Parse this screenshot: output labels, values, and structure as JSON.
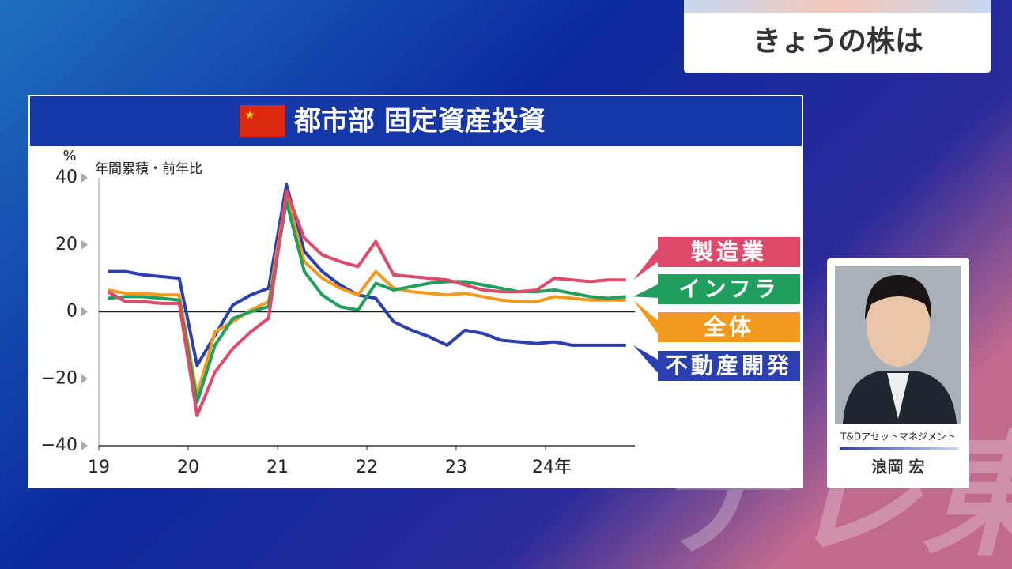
{
  "header": {
    "title": "きょうの株は"
  },
  "chart_data": {
    "type": "line",
    "title": "都市部 固定資産投資",
    "subtitle": "年間累積・前年比",
    "y_unit": "%",
    "x": [
      19.1,
      19.3,
      19.5,
      19.7,
      19.9,
      20.1,
      20.3,
      20.5,
      20.7,
      20.9,
      21.1,
      21.3,
      21.5,
      21.7,
      21.9,
      22.1,
      22.3,
      22.5,
      22.7,
      22.9,
      23.1,
      23.3,
      23.5,
      23.7,
      23.9,
      24.1,
      24.3,
      24.5,
      24.7,
      24.9
    ],
    "series": [
      {
        "name": "製造業",
        "color": "#e04a6a",
        "values": [
          6,
          3,
          3,
          2.5,
          2.5,
          -31,
          -18,
          -11,
          -6,
          -2,
          36,
          22,
          17,
          15,
          13.5,
          21,
          11,
          10.5,
          10,
          9.5,
          8,
          6.5,
          6,
          6,
          6.5,
          10,
          9.5,
          9,
          9.5,
          9.5
        ]
      },
      {
        "name": "インフラ",
        "color": "#1f9e5e",
        "values": [
          4,
          4.5,
          4.5,
          4,
          3.5,
          -27,
          -10,
          -2,
          0,
          1.5,
          33,
          12,
          5,
          1.5,
          0.5,
          8.5,
          6.5,
          7.5,
          8.5,
          9,
          9,
          8,
          7,
          6,
          6,
          6.5,
          5.5,
          4.5,
          4,
          4.5
        ]
      },
      {
        "name": "全体",
        "color": "#f39a1e",
        "values": [
          6.5,
          5.5,
          5.5,
          5,
          5,
          -25,
          -6,
          -3,
          0.5,
          3,
          35,
          15,
          10,
          7,
          5,
          12,
          7,
          6,
          5.5,
          5,
          5.5,
          4.5,
          3.5,
          3,
          3,
          4.5,
          4,
          3.5,
          3.5,
          3.5
        ]
      },
      {
        "name": "不動産開発",
        "color": "#2c3fb0",
        "values": [
          12,
          12,
          11,
          10.5,
          10,
          -16,
          -7,
          2,
          5,
          7,
          38,
          18,
          12,
          8,
          5,
          4,
          -3,
          -5.5,
          -7.5,
          -10,
          -5.5,
          -6.5,
          -8.5,
          -9,
          -9.5,
          -9,
          -10,
          -10,
          -10,
          -10
        ]
      }
    ],
    "xlim": [
      19,
      25
    ],
    "xticks": [
      19,
      20,
      21,
      22,
      23,
      {
        "value": 24,
        "label": "24年"
      }
    ],
    "ylim": [
      -40,
      40
    ],
    "yticks": [
      40,
      20,
      0,
      {
        "value": -20,
        "label": "−20"
      },
      {
        "value": -40,
        "label": "−40"
      }
    ],
    "grid": false
  },
  "commentator": {
    "company": "T&Dアセットマネジメント",
    "name": "浪岡 宏"
  },
  "watermark": "テレ東"
}
